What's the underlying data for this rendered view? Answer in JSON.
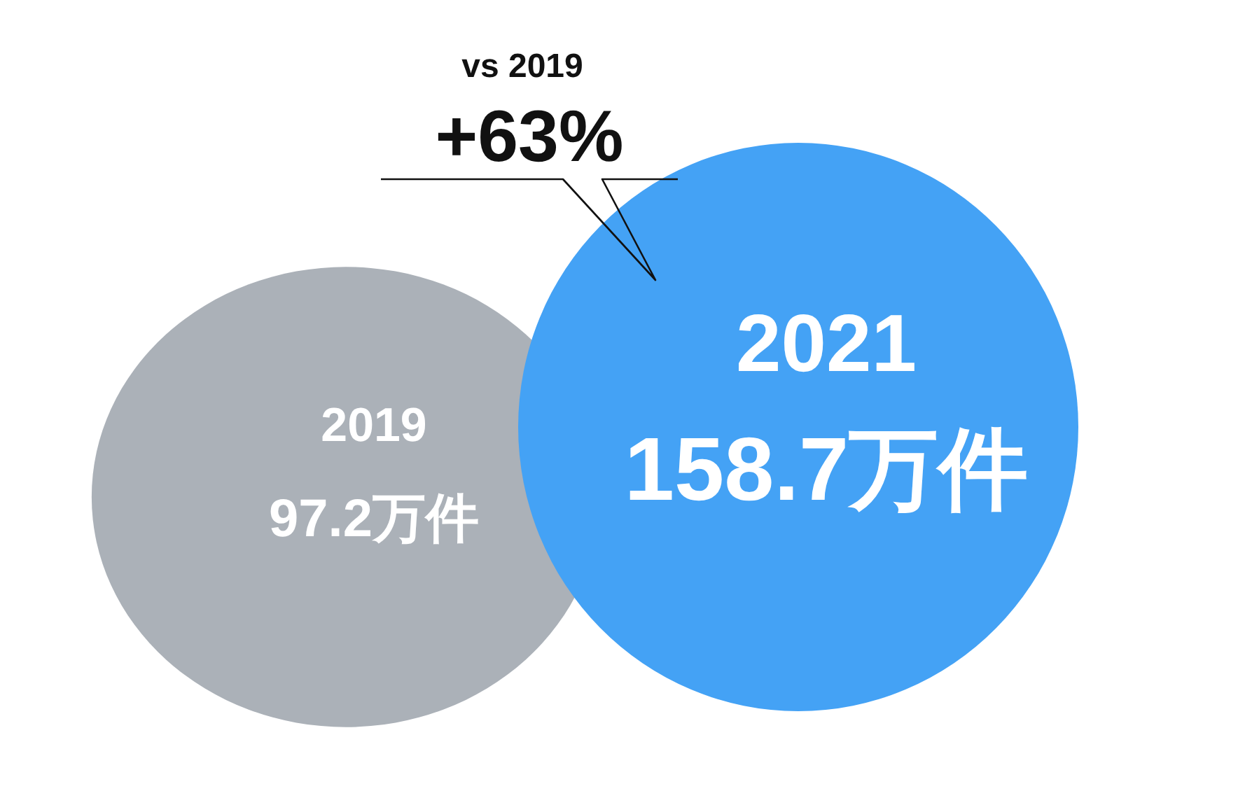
{
  "chart_data": {
    "type": "other",
    "categories": [
      "2019",
      "2021"
    ],
    "values": [
      97.2,
      158.7
    ],
    "value_labels": [
      "97.2万件",
      "158.7万件"
    ],
    "colors": [
      "#abb1b8",
      "#44a2f5"
    ],
    "annotations": [
      "vs 2019",
      "+63%"
    ]
  }
}
